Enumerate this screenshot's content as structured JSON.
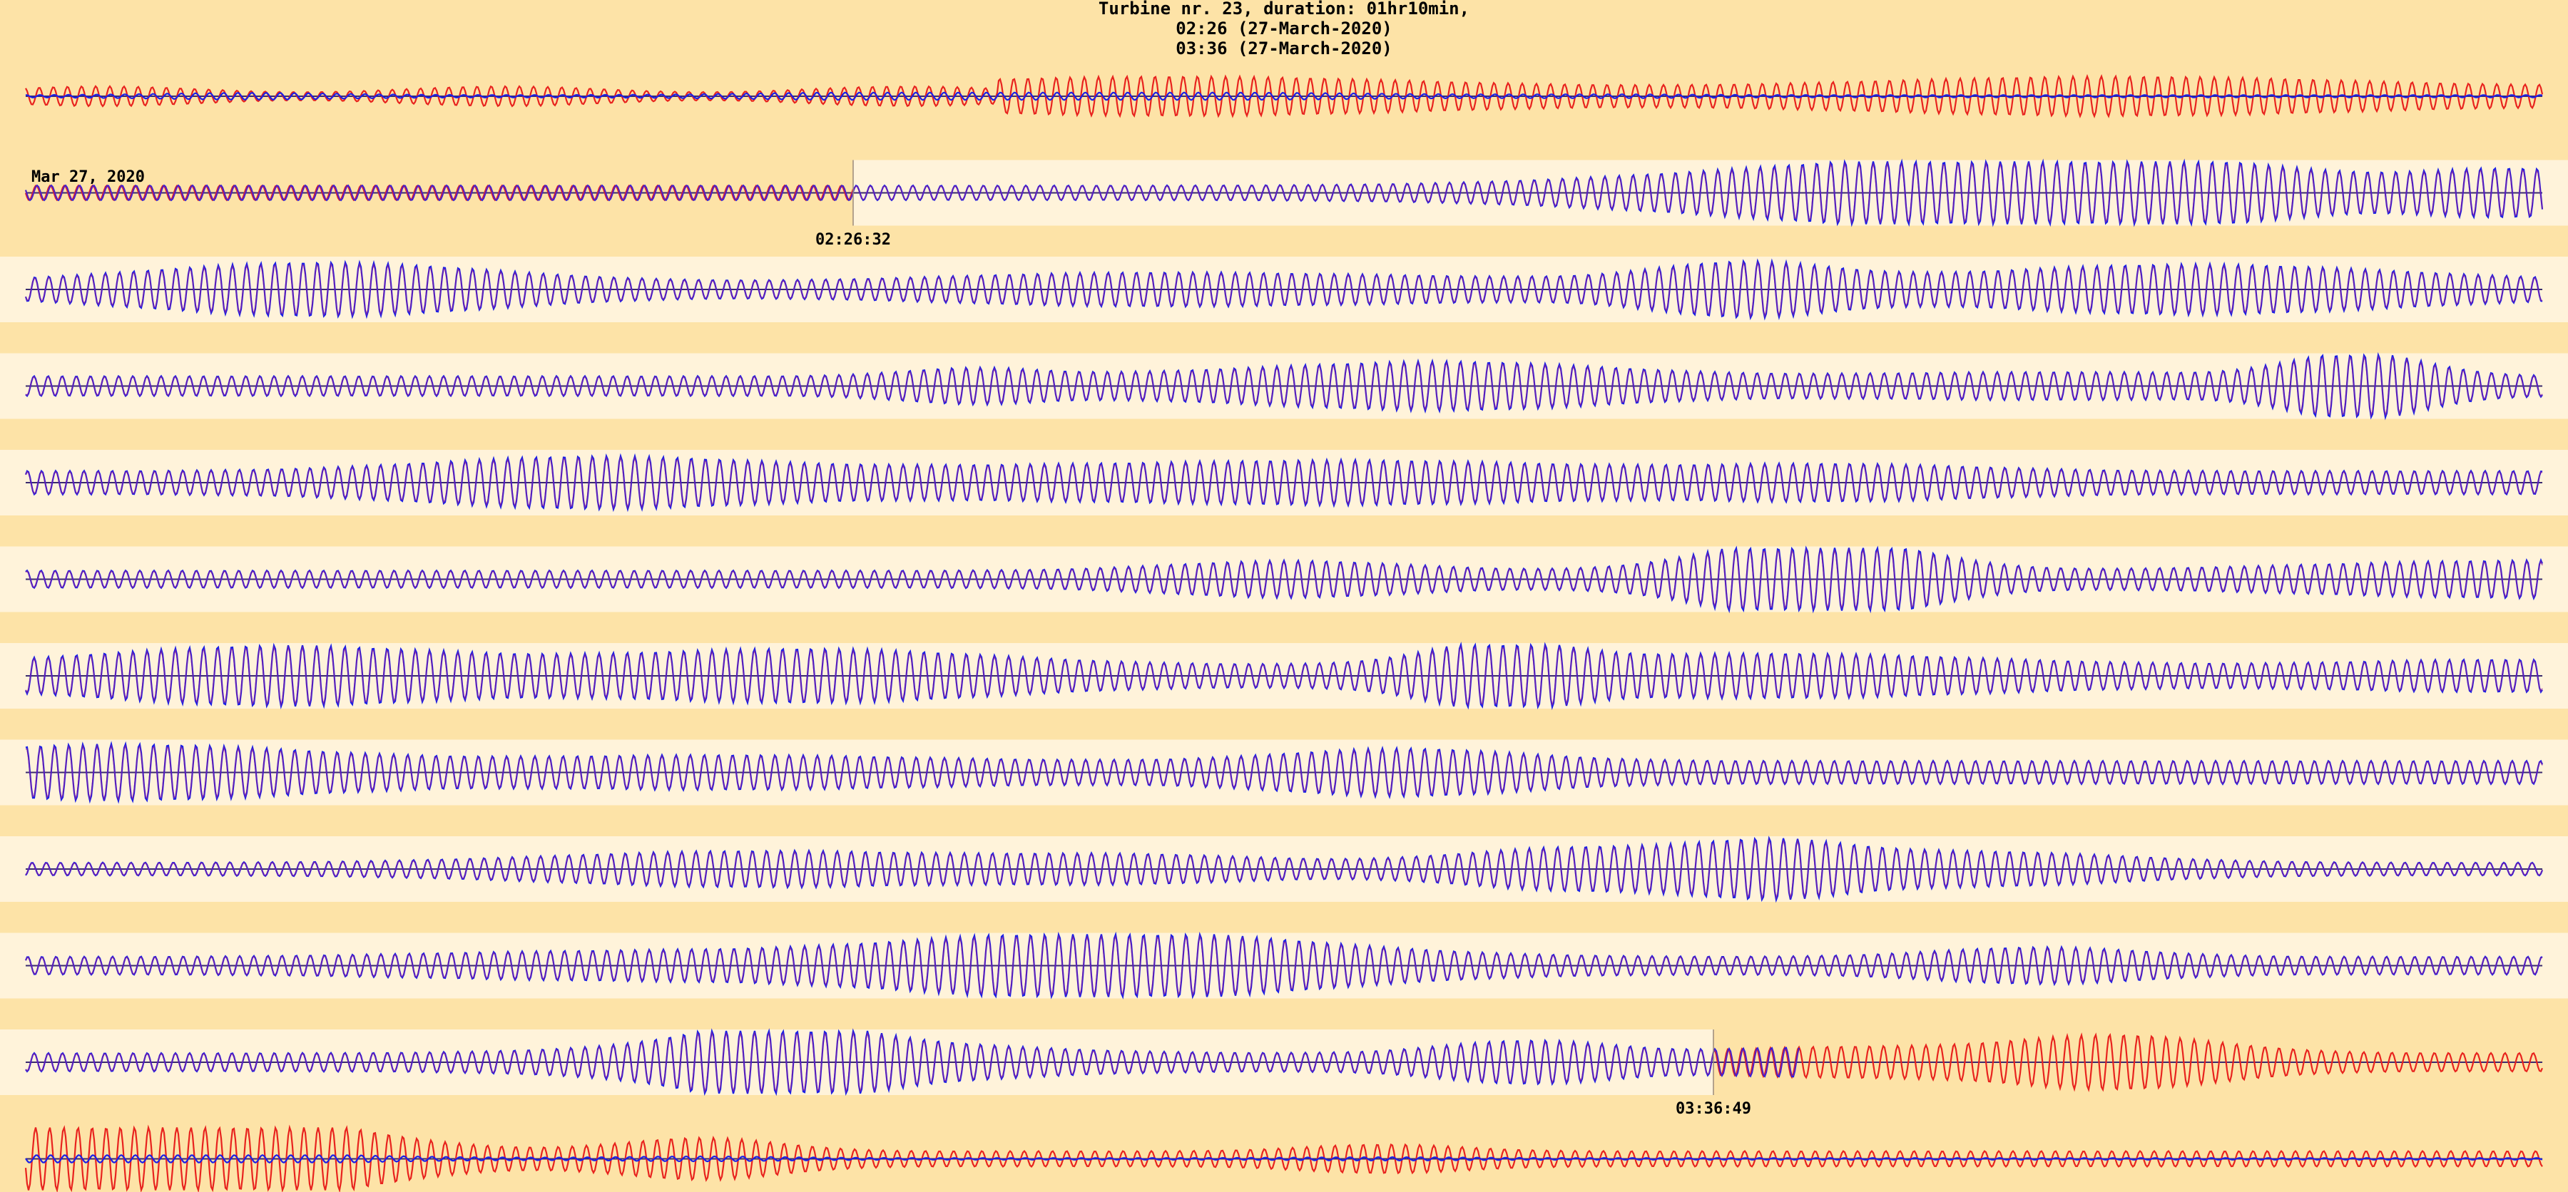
{
  "chart_data": {
    "type": "line",
    "title": [
      "Turbine nr. 23,  duration: 01hr10min,",
      "02:26 (27-March-2020)",
      "03:36 (27-March-2020)"
    ],
    "date_label": "Mar 27, 2020",
    "start_time_label": "02:26:32",
    "end_time_label": "03:36:49",
    "rows": 12,
    "series": [
      {
        "name": "",
        "color": "#e8231e"
      },
      {
        "name": "",
        "color": "#1a20e6"
      }
    ],
    "colors": {
      "background": "#fde3a7",
      "highlight_band": "#fff3da",
      "red_trace": "#e8231e",
      "blue_trace": "#1a20e6",
      "axis_line": "#3a2a6e"
    },
    "grid": false,
    "legend": "none"
  }
}
